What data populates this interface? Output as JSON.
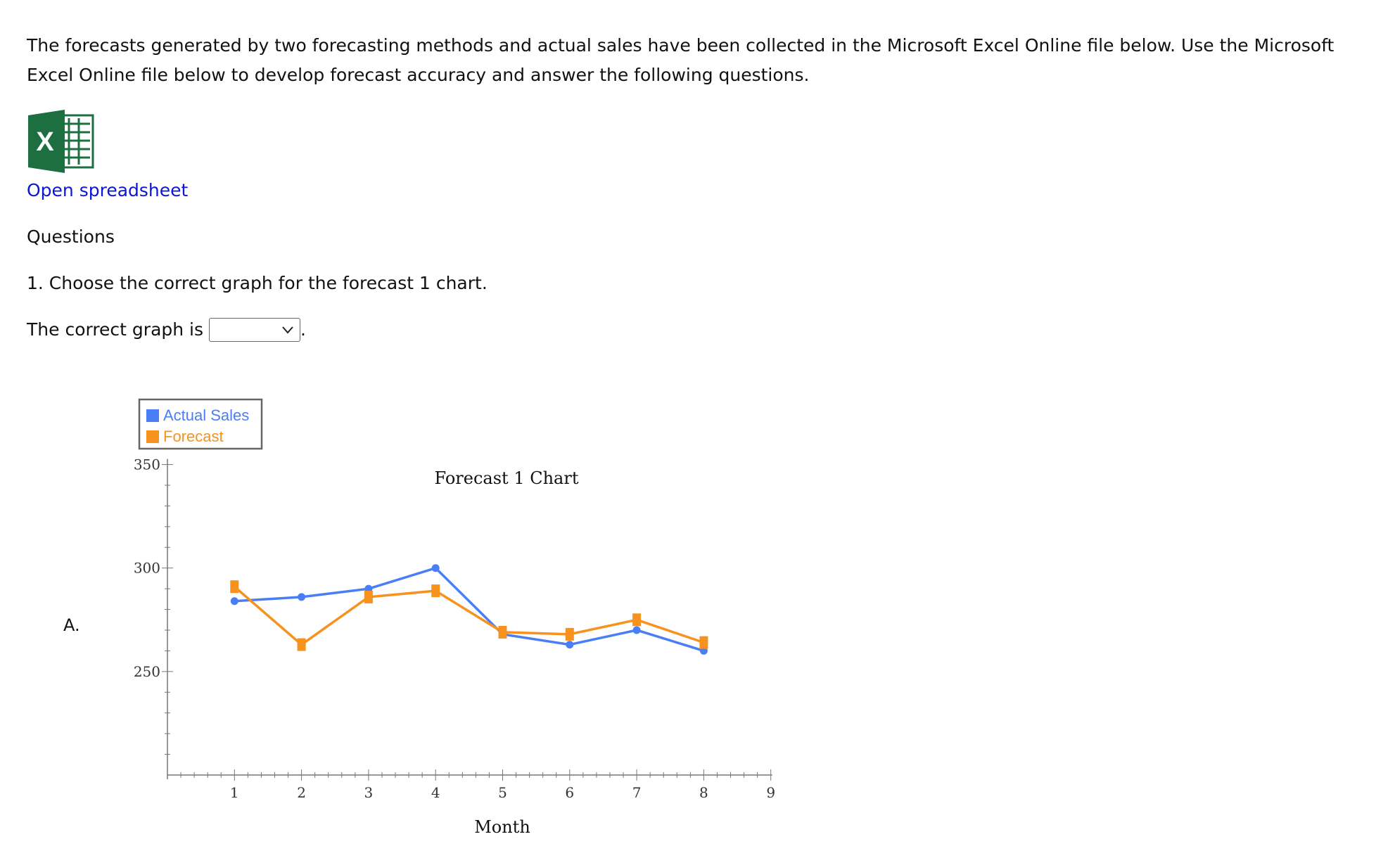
{
  "intro_text": "The forecasts generated by two forecasting methods and actual sales have been collected in the Microsoft Excel Online file below. Use the Microsoft Excel Online file below to develop forecast accuracy and answer the following questions.",
  "excel_icon": {
    "icon": "excel-icon",
    "letter": "X",
    "color": "#1d6f42"
  },
  "open_link_label": "Open spreadsheet",
  "questions_heading": "Questions",
  "question_1": "1. Choose the correct graph for the forecast 1 chart.",
  "answer_prefix": "The correct graph is",
  "answer_suffix": ".",
  "graph_select": {
    "value": ""
  },
  "option_label": "A.",
  "colors": {
    "link": "#0a17d8",
    "actual": "#4a7ef5",
    "forecast": "#f7921e"
  },
  "chart_data": {
    "type": "line",
    "title": "Forecast 1 Chart",
    "xlabel": "Month",
    "ylabel": "",
    "x": [
      1,
      2,
      3,
      4,
      5,
      6,
      7,
      8
    ],
    "xlim": [
      0,
      9
    ],
    "ylim": [
      200,
      350
    ],
    "xticks": [
      1,
      2,
      3,
      4,
      5,
      6,
      7,
      8,
      9
    ],
    "yticks": [
      250,
      300,
      350
    ],
    "legend_position": "top-left",
    "series": [
      {
        "name": "Actual Sales",
        "color": "#4a7ef5",
        "marker": "circle",
        "values": [
          284,
          286,
          290,
          300,
          268,
          263,
          270,
          260
        ]
      },
      {
        "name": "Forecast",
        "color": "#f7921e",
        "marker": "square",
        "values": [
          291,
          263,
          286,
          289,
          269,
          268,
          275,
          264
        ]
      }
    ]
  }
}
